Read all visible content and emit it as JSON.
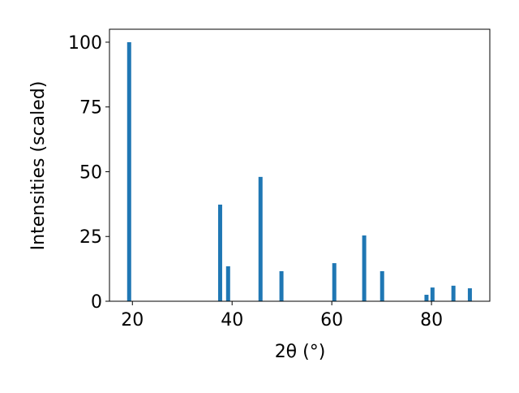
{
  "chart_data": {
    "type": "bar",
    "x": [
      19.35,
      37.6,
      39.2,
      45.7,
      49.9,
      60.5,
      66.5,
      70.1,
      79.0,
      80.2,
      84.4,
      87.7
    ],
    "values": [
      100,
      37.3,
      13.5,
      48,
      11.6,
      14.7,
      25.4,
      11.6,
      2.5,
      5.3,
      6,
      5
    ],
    "color": "#1f77b4",
    "xlabel": "2θ (°)",
    "ylabel": "Intensities (scaled)",
    "xlim": [
      15.4,
      91.7
    ],
    "ylim": [
      0,
      105
    ],
    "xticks": [
      20,
      40,
      60,
      80
    ],
    "yticks": [
      0,
      25,
      50,
      75,
      100
    ]
  }
}
